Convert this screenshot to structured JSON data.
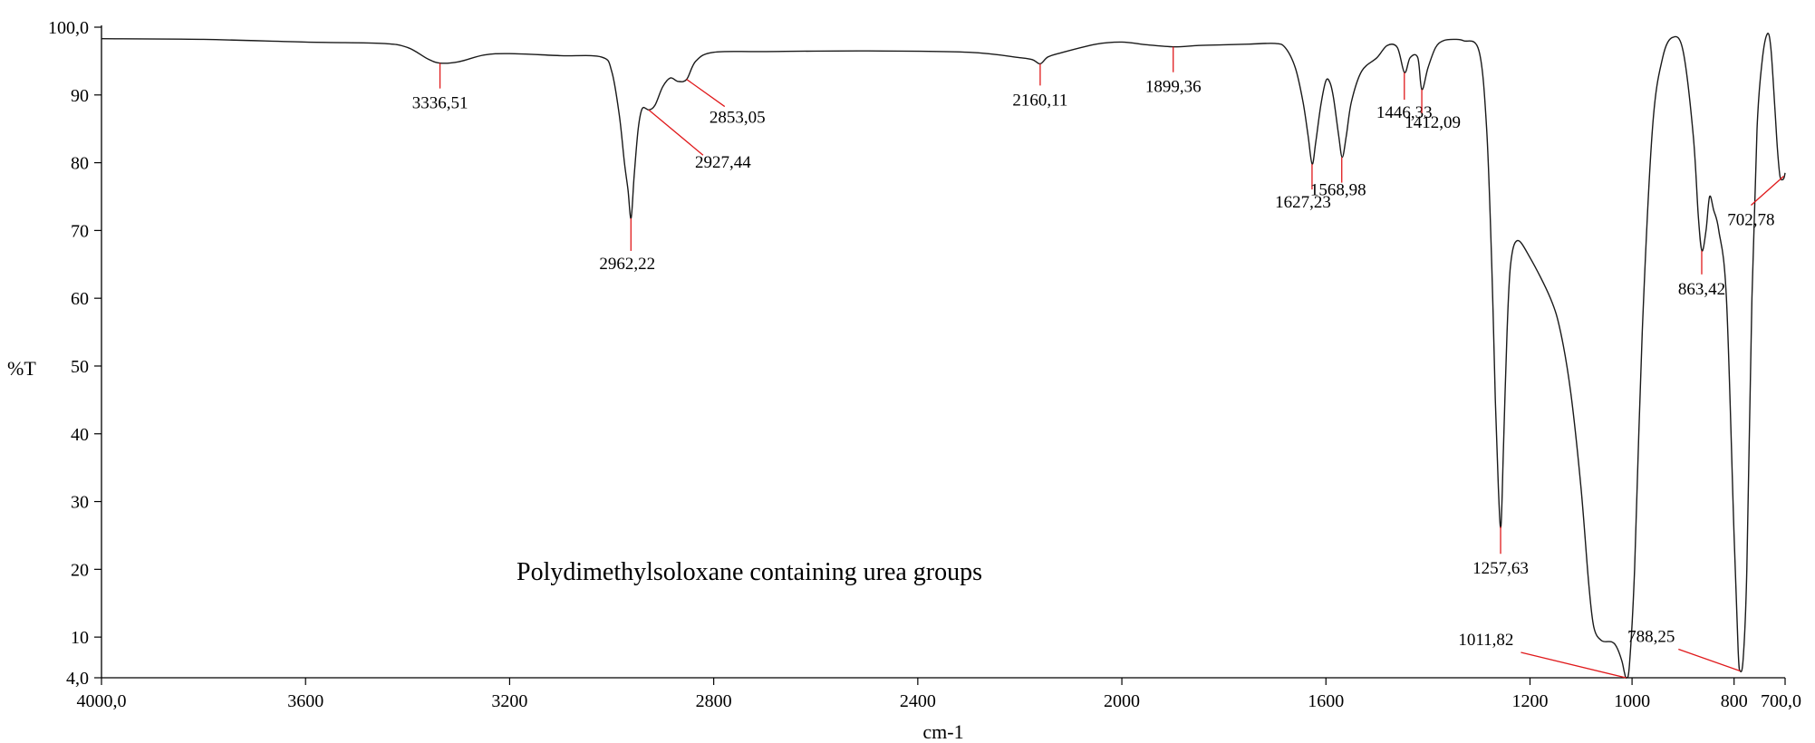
{
  "chart_data": {
    "type": "line",
    "title": "",
    "annotation": "Polydimethylsoloxane containing urea groups",
    "xlabel": "cm-1",
    "ylabel": "%T",
    "xlim": [
      4000,
      700
    ],
    "ylim": [
      4,
      100
    ],
    "grid": false,
    "x_ticks": [
      {
        "value": 4000,
        "label": "4000,0"
      },
      {
        "value": 3600,
        "label": "3600"
      },
      {
        "value": 3200,
        "label": "3200"
      },
      {
        "value": 2800,
        "label": "2800"
      },
      {
        "value": 2400,
        "label": "2400"
      },
      {
        "value": 2000,
        "label": "2000"
      },
      {
        "value": 1600,
        "label": "1600"
      },
      {
        "value": 1200,
        "label": "1200"
      },
      {
        "value": 1000,
        "label": "1000"
      },
      {
        "value": 800,
        "label": "800"
      },
      {
        "value": 700,
        "label": "700,0"
      }
    ],
    "y_ticks": [
      {
        "value": 4,
        "label": "4,0"
      },
      {
        "value": 10,
        "label": "10"
      },
      {
        "value": 20,
        "label": "20"
      },
      {
        "value": 30,
        "label": "30"
      },
      {
        "value": 40,
        "label": "40"
      },
      {
        "value": 50,
        "label": "50"
      },
      {
        "value": 60,
        "label": "60"
      },
      {
        "value": 70,
        "label": "70"
      },
      {
        "value": 80,
        "label": "80"
      },
      {
        "value": 90,
        "label": "90"
      },
      {
        "value": 100,
        "label": "100,0"
      }
    ],
    "series": [
      {
        "color": "#1a1a1a",
        "x": [
          4000,
          3800,
          3600,
          3450,
          3400,
          3360,
          3336,
          3300,
          3250,
          3200,
          3100,
          3020,
          3000,
          2985,
          2975,
          2968,
          2962,
          2956,
          2948,
          2940,
          2927,
          2915,
          2900,
          2885,
          2870,
          2853,
          2835,
          2800,
          2700,
          2500,
          2300,
          2200,
          2175,
          2160,
          2145,
          2120,
          2050,
          2000,
          1950,
          1899,
          1850,
          1800,
          1750,
          1700,
          1680,
          1660,
          1645,
          1635,
          1627,
          1620,
          1610,
          1600,
          1592,
          1585,
          1575,
          1568,
          1560,
          1550,
          1530,
          1500,
          1480,
          1460,
          1446,
          1435,
          1420,
          1412,
          1400,
          1385,
          1370,
          1350,
          1330,
          1300,
          1285,
          1275,
          1268,
          1262,
          1257,
          1252,
          1245,
          1238,
          1225,
          1200,
          1160,
          1140,
          1120,
          1100,
          1085,
          1075,
          1060,
          1040,
          1030,
          1020,
          1015,
          1011,
          1005,
          995,
          980,
          960,
          940,
          920,
          900,
          880,
          870,
          863,
          855,
          848,
          840,
          830,
          815,
          800,
          792,
          788,
          782,
          775,
          765,
          755,
          745,
          735,
          728,
          720,
          715,
          710,
          705,
          702,
          700
        ],
        "y": [
          98.3,
          98.2,
          97.8,
          97.6,
          97.0,
          95.3,
          94.7,
          94.9,
          95.9,
          96.1,
          95.8,
          95.6,
          93.5,
          87.0,
          80.0,
          76.0,
          71.8,
          78.0,
          85.0,
          88.0,
          87.8,
          88.5,
          91.2,
          92.5,
          92.0,
          92.3,
          95.0,
          96.3,
          96.4,
          96.5,
          96.3,
          95.5,
          95.2,
          94.6,
          95.6,
          96.2,
          97.5,
          97.8,
          97.4,
          97.1,
          97.3,
          97.4,
          97.5,
          97.6,
          97.0,
          94.0,
          89.0,
          84.0,
          79.8,
          83.0,
          88.5,
          92.1,
          91.8,
          89.5,
          84.0,
          80.8,
          84.0,
          89.0,
          93.5,
          95.5,
          97.3,
          97.0,
          93.3,
          95.5,
          95.5,
          90.8,
          94.0,
          97.0,
          98.0,
          98.2,
          98.0,
          96.5,
          85.0,
          65.0,
          45.0,
          32.0,
          26.3,
          38.0,
          55.0,
          65.0,
          68.5,
          66.0,
          60.0,
          55.0,
          46.0,
          32.0,
          18.0,
          11.5,
          9.5,
          9.3,
          8.5,
          6.5,
          4.8,
          4.0,
          6.0,
          20.0,
          55.0,
          85.0,
          95.5,
          98.5,
          96.5,
          84.0,
          72.0,
          67.0,
          70.0,
          75.0,
          73.0,
          70.0,
          60.0,
          25.0,
          8.0,
          5.0,
          7.0,
          20.0,
          60.0,
          85.0,
          95.0,
          99.0,
          97.0,
          88.0,
          82.0,
          78.0,
          77.5,
          77.8,
          78.5
        ]
      }
    ],
    "peaks": [
      {
        "label": "3336,51",
        "x": 3336.51,
        "y": 94.7
      },
      {
        "label": "2962,22",
        "x": 2962.22,
        "y": 71.8
      },
      {
        "label": "2927,44",
        "x": 2927.44,
        "y": 87.8
      },
      {
        "label": "2853,05",
        "x": 2853.05,
        "y": 92.3
      },
      {
        "label": "2160,11",
        "x": 2160.11,
        "y": 94.6
      },
      {
        "label": "1899,36",
        "x": 1899.36,
        "y": 97.1
      },
      {
        "label": "1627,23",
        "x": 1627.23,
        "y": 79.8
      },
      {
        "label": "1568,98",
        "x": 1568.98,
        "y": 80.8
      },
      {
        "label": "1446,33",
        "x": 1446.33,
        "y": 93.3
      },
      {
        "label": "1412,09",
        "x": 1412.09,
        "y": 90.8
      },
      {
        "label": "1257,63",
        "x": 1257.63,
        "y": 26.3
      },
      {
        "label": "1011,82",
        "x": 1011.82,
        "y": 4.0
      },
      {
        "label": "863,42",
        "x": 863.42,
        "y": 67.0
      },
      {
        "label": "788,25",
        "x": 788.25,
        "y": 5.0
      },
      {
        "label": "702,78",
        "x": 702.78,
        "y": 78.0
      }
    ],
    "peak_marker_color": "#e0191b",
    "axis_color": "#000000"
  }
}
